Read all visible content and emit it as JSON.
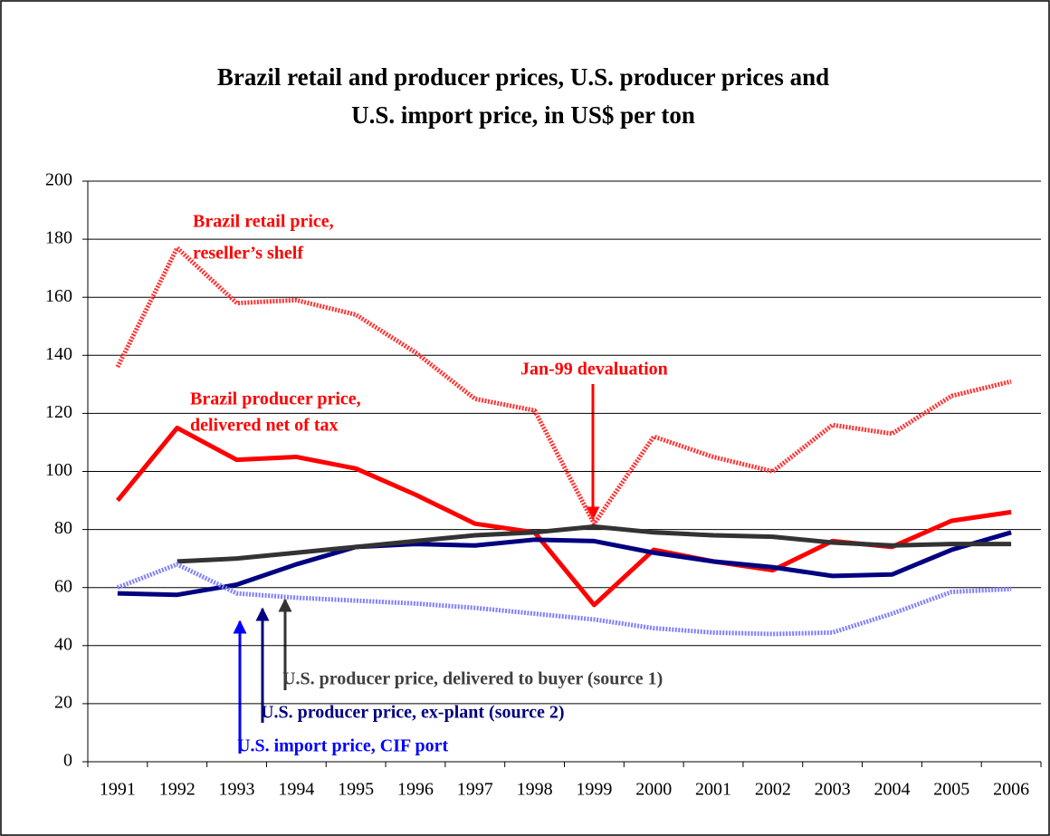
{
  "chart_data": {
    "type": "line",
    "title": [
      "Brazil retail and producer prices, U.S. producer prices and",
      "U.S. import price, in US$ per ton"
    ],
    "categories": [
      "1991",
      "1992",
      "1993",
      "1994",
      "1995",
      "1996",
      "1997",
      "1998",
      "1999",
      "2000",
      "2001",
      "2002",
      "2003",
      "2004",
      "2005",
      "2006"
    ],
    "series": [
      {
        "color": "#ff3333",
        "style": "hatched",
        "values": [
          136,
          177,
          158,
          159,
          154,
          141,
          125,
          121,
          82,
          112,
          105,
          100,
          116,
          113,
          126,
          131
        ]
      },
      {
        "color": "#ff0000",
        "style": "solid",
        "values": [
          90,
          115,
          104,
          105,
          101,
          92,
          82,
          79,
          54,
          73,
          69,
          66,
          76,
          74,
          83,
          86
        ]
      },
      {
        "color": "#000080",
        "style": "solid",
        "values": [
          58,
          57.5,
          61,
          68,
          74,
          75,
          74.5,
          76.5,
          76,
          72,
          69,
          67,
          64,
          64.5,
          73,
          79
        ]
      },
      {
        "color": "#333333",
        "style": "solid",
        "values": [
          null,
          69,
          70,
          72,
          74,
          76,
          78,
          79,
          81,
          79,
          78,
          77.5,
          75.5,
          74.5,
          75,
          75
        ]
      },
      {
        "color": "#8080ff",
        "style": "hatched",
        "values": [
          60,
          68,
          58,
          56.5,
          55.5,
          54.5,
          53,
          51,
          49,
          46,
          44.5,
          44,
          44.5,
          51,
          58.5,
          59.5
        ]
      }
    ],
    "annotations": [
      "Brazil retail price,",
      "reseller’s shelf",
      "Brazil producer price,",
      "delivered net of tax",
      "Jan-99 devaluation",
      "U.S. producer price, delivered to buyer (source 1)",
      "U.S. producer price, ex-plant (source 2)",
      "U.S. import price, CIF port"
    ],
    "ylim": [
      0,
      200
    ],
    "yticks": [
      0,
      20,
      40,
      60,
      80,
      100,
      120,
      140,
      160,
      180,
      200
    ],
    "grid": true
  }
}
